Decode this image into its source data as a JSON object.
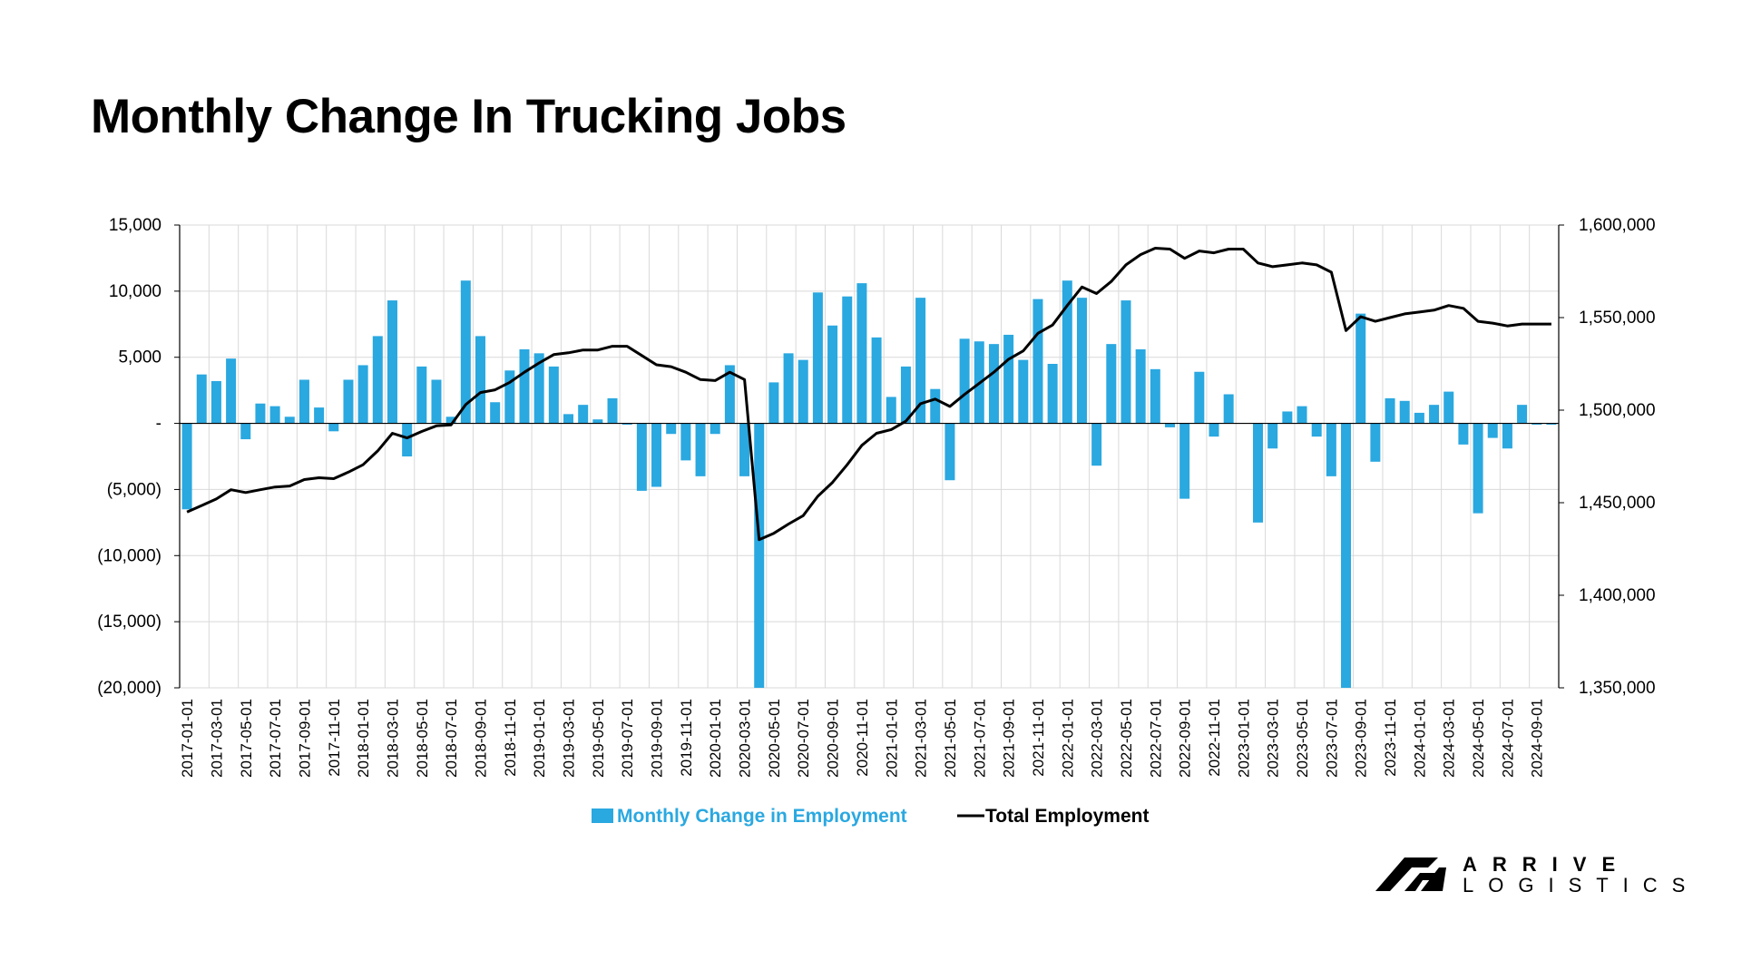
{
  "title": "Monthly Change In Trucking Jobs",
  "brand": {
    "line1": "ARRIVE",
    "line2": "LOGISTICS"
  },
  "colors": {
    "bar": "#2aa8e0",
    "line": "#000000",
    "grid": "#d9d9d9",
    "axis": "#000000"
  },
  "chart_data": {
    "type": "bar",
    "categories": [
      "2017-01-01",
      "2017-02-01",
      "2017-03-01",
      "2017-04-01",
      "2017-05-01",
      "2017-06-01",
      "2017-07-01",
      "2017-08-01",
      "2017-09-01",
      "2017-10-01",
      "2017-11-01",
      "2017-12-01",
      "2018-01-01",
      "2018-02-01",
      "2018-03-01",
      "2018-04-01",
      "2018-05-01",
      "2018-06-01",
      "2018-07-01",
      "2018-08-01",
      "2018-09-01",
      "2018-10-01",
      "2018-11-01",
      "2018-12-01",
      "2019-01-01",
      "2019-02-01",
      "2019-03-01",
      "2019-04-01",
      "2019-05-01",
      "2019-06-01",
      "2019-07-01",
      "2019-08-01",
      "2019-09-01",
      "2019-10-01",
      "2019-11-01",
      "2019-12-01",
      "2020-01-01",
      "2020-02-01",
      "2020-03-01",
      "2020-04-01",
      "2020-05-01",
      "2020-06-01",
      "2020-07-01",
      "2020-08-01",
      "2020-09-01",
      "2020-10-01",
      "2020-11-01",
      "2020-12-01",
      "2021-01-01",
      "2021-02-01",
      "2021-03-01",
      "2021-04-01",
      "2021-05-01",
      "2021-06-01",
      "2021-07-01",
      "2021-08-01",
      "2021-09-01",
      "2021-10-01",
      "2021-11-01",
      "2021-12-01",
      "2022-01-01",
      "2022-02-01",
      "2022-03-01",
      "2022-04-01",
      "2022-05-01",
      "2022-06-01",
      "2022-07-01",
      "2022-08-01",
      "2022-09-01",
      "2022-10-01",
      "2022-11-01",
      "2022-12-01",
      "2023-01-01",
      "2023-02-01",
      "2023-03-01",
      "2023-04-01",
      "2023-05-01",
      "2023-06-01",
      "2023-07-01",
      "2023-08-01",
      "2023-09-01",
      "2023-10-01",
      "2023-11-01",
      "2023-12-01",
      "2024-01-01",
      "2024-02-01",
      "2024-03-01",
      "2024-04-01",
      "2024-05-01",
      "2024-06-01",
      "2024-07-01",
      "2024-08-01",
      "2024-09-01",
      "2024-10-01"
    ],
    "x_tick_labels": [
      "2017-01-01",
      "2017-03-01",
      "2017-05-01",
      "2017-07-01",
      "2017-09-01",
      "2017-11-01",
      "2018-01-01",
      "2018-03-01",
      "2018-05-01",
      "2018-07-01",
      "2018-09-01",
      "2018-11-01",
      "2019-01-01",
      "2019-03-01",
      "2019-05-01",
      "2019-07-01",
      "2019-09-01",
      "2019-11-01",
      "2020-01-01",
      "2020-03-01",
      "2020-05-01",
      "2020-07-01",
      "2020-09-01",
      "2020-11-01",
      "2021-01-01",
      "2021-03-01",
      "2021-05-01",
      "2021-07-01",
      "2021-09-01",
      "2021-11-01",
      "2022-01-01",
      "2022-03-01",
      "2022-05-01",
      "2022-07-01",
      "2022-09-01",
      "2022-11-01",
      "2023-01-01",
      "2023-03-01",
      "2023-05-01",
      "2023-07-01",
      "2023-09-01",
      "2023-11-01",
      "2024-01-01",
      "2024-03-01",
      "2024-05-01",
      "2024-07-01",
      "2024-09-01"
    ],
    "series": [
      {
        "name": "Monthly Change in Employment",
        "type": "bar",
        "axis": "left",
        "values": [
          -6500,
          3700,
          3200,
          4900,
          -1200,
          1500,
          1300,
          500,
          3300,
          1200,
          -600,
          3300,
          4400,
          6600,
          9300,
          -2500,
          4300,
          3300,
          500,
          10800,
          6600,
          1600,
          4000,
          5600,
          5300,
          4300,
          700,
          1400,
          300,
          1900,
          -100,
          -5100,
          -4800,
          -800,
          -2800,
          -4000,
          -800,
          4400,
          -4000,
          -20000,
          3100,
          5300,
          4800,
          9900,
          7400,
          9600,
          10600,
          6500,
          2000,
          4300,
          9500,
          2600,
          -4300,
          6400,
          6200,
          6000,
          6700,
          4800,
          9400,
          4500,
          10800,
          9500,
          -3200,
          6000,
          9300,
          5600,
          4100,
          -300,
          -5700,
          3900,
          -1000,
          2200,
          0,
          -7500,
          -1900,
          900,
          1300,
          -1000,
          -4000,
          -20000,
          8300,
          -2900,
          1900,
          1700,
          800,
          1400,
          2400,
          -1600,
          -6800,
          -1100,
          -1900,
          1400,
          -100,
          -100
        ]
      },
      {
        "name": "Total Employment",
        "type": "line",
        "axis": "right",
        "values": [
          1445000,
          1448500,
          1452000,
          1457000,
          1455500,
          1457000,
          1458500,
          1459000,
          1462500,
          1463500,
          1463000,
          1466500,
          1470500,
          1478000,
          1487500,
          1485000,
          1488500,
          1491500,
          1492000,
          1503000,
          1509500,
          1511000,
          1515000,
          1520500,
          1525500,
          1530000,
          1531000,
          1532500,
          1532500,
          1534500,
          1534500,
          1529500,
          1524500,
          1523500,
          1520500,
          1516500,
          1516000,
          1520500,
          1516500,
          1430000,
          1433500,
          1438500,
          1443000,
          1453500,
          1461000,
          1470500,
          1481000,
          1487500,
          1489500,
          1494000,
          1503500,
          1506000,
          1502000,
          1508500,
          1514500,
          1520500,
          1527500,
          1532000,
          1541500,
          1546000,
          1556500,
          1566500,
          1563000,
          1569500,
          1578500,
          1584000,
          1587500,
          1587000,
          1582000,
          1586000,
          1585000,
          1587000,
          1587000,
          1579500,
          1577500,
          1578500,
          1579500,
          1578500,
          1574500,
          1543000,
          1550500,
          1548000,
          1550000,
          1552000,
          1553000,
          1554000,
          1556500,
          1555000,
          1548000,
          1547000,
          1545500,
          1546500,
          1546500,
          1546500
        ]
      }
    ],
    "y_left": {
      "min": -20000,
      "max": 15000,
      "step": 5000,
      "tick_labels": [
        "(20,000)",
        "(15,000)",
        "(10,000)",
        "(5,000)",
        "-",
        "5,000",
        "10,000",
        "15,000"
      ]
    },
    "y_right": {
      "min": 1350000,
      "max": 1600000,
      "step": 50000,
      "tick_labels": [
        "1,350,000",
        "1,400,000",
        "1,450,000",
        "1,500,000",
        "1,550,000",
        "1,600,000"
      ]
    },
    "legend": {
      "position": "bottom",
      "items": [
        "Monthly Change in Employment",
        "Total Employment"
      ]
    },
    "grid": true
  }
}
